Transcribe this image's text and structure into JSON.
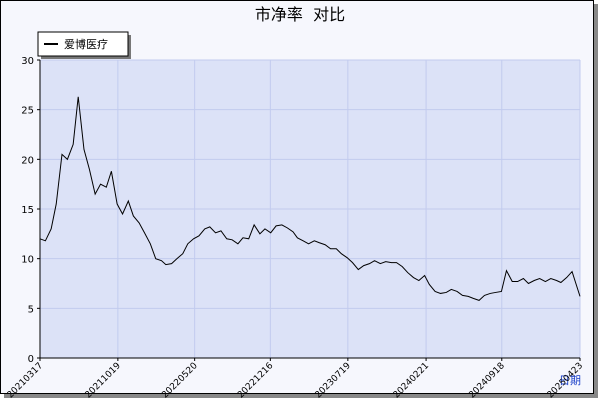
{
  "chart_data": {
    "type": "line",
    "title": "市净率  对比",
    "x_label": "日期",
    "x": [
      "20210317",
      "20210401",
      "20210417",
      "20210501",
      "20210517",
      "20210601",
      "20210617",
      "20210701",
      "20210717",
      "20210801",
      "20210817",
      "20210901",
      "20210917",
      "20211001",
      "20211017",
      "20211101",
      "20211117",
      "20211201",
      "20211217",
      "20220101",
      "20220117",
      "20220201",
      "20220217",
      "20220301",
      "20220317",
      "20220401",
      "20220417",
      "20220501",
      "20220517",
      "20220601",
      "20220617",
      "20220701",
      "20220717",
      "20220801",
      "20220817",
      "20220901",
      "20220917",
      "20221001",
      "20221017",
      "20221101",
      "20221117",
      "20221201",
      "20221217",
      "20230101",
      "20230117",
      "20230201",
      "20230217",
      "20230301",
      "20230317",
      "20230401",
      "20230417",
      "20230501",
      "20230517",
      "20230601",
      "20230617",
      "20230701",
      "20230717",
      "20230801",
      "20230817",
      "20230901",
      "20230917",
      "20231001",
      "20231017",
      "20231101",
      "20231117",
      "20231201",
      "20231217",
      "20240101",
      "20240117",
      "20240201",
      "20240217",
      "20240301",
      "20240317",
      "20240401",
      "20240417",
      "20240501",
      "20240517",
      "20240601",
      "20240617",
      "20240701",
      "20240717",
      "20240801",
      "20240817",
      "20240901",
      "20240917",
      "20241001",
      "20241017",
      "20241101",
      "20241117",
      "20241201",
      "20241217",
      "20250101",
      "20250117",
      "20250201",
      "20250217",
      "20250301",
      "20250317",
      "20250401",
      "20250423"
    ],
    "series": [
      {
        "name": "爱博医疗",
        "color": "#000000",
        "values": [
          12,
          11.8,
          13,
          15.5,
          20.5,
          20,
          21.5,
          26.3,
          21,
          19,
          16.5,
          17.5,
          17.2,
          18.8,
          15.5,
          14.5,
          15.8,
          14.3,
          13.6,
          12.6,
          11.5,
          10,
          9.8,
          9.4,
          9.5,
          10,
          10.5,
          11.5,
          12,
          12.3,
          13,
          13.2,
          12.6,
          12.8,
          12,
          11.9,
          11.5,
          12.1,
          12,
          13.4,
          12.5,
          13,
          12.6,
          13.3,
          13.4,
          13.1,
          12.7,
          12.1,
          11.8,
          11.5,
          11.8,
          11.6,
          11.4,
          11,
          11,
          10.5,
          10.1,
          9.6,
          8.9,
          9.3,
          9.5,
          9.8,
          9.5,
          9.7,
          9.6,
          9.6,
          9.2,
          8.6,
          8.1,
          7.8,
          8.3,
          7.4,
          6.7,
          6.5,
          6.6,
          6.9,
          6.7,
          6.3,
          6.2,
          6,
          5.8,
          6.3,
          6.5,
          6.6,
          6.7,
          8.8,
          7.7,
          7.7,
          8,
          7.5,
          7.8,
          8,
          7.7,
          8,
          7.8,
          7.6,
          8.1,
          8.7,
          6.2
        ]
      }
    ],
    "xlim": [
      "20210317",
      "20250423"
    ],
    "xticks": [
      "20210317",
      "20211019",
      "20220520",
      "20221216",
      "20230719",
      "20240221",
      "20240918",
      "20250423"
    ],
    "ylim": [
      0,
      30
    ],
    "yticks": [
      0,
      5,
      10,
      15,
      20,
      25,
      30
    ],
    "grid": true,
    "legend": "upper left"
  }
}
